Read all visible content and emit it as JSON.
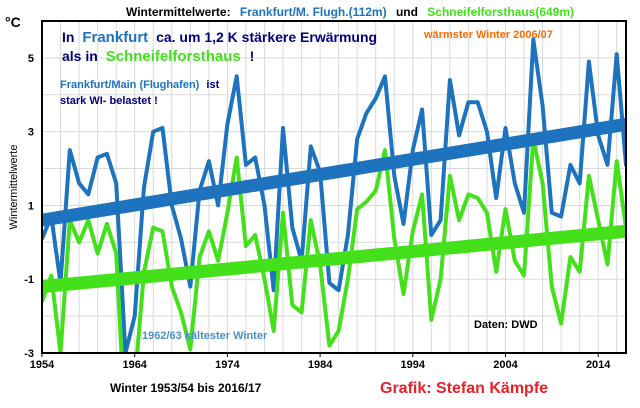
{
  "header": {
    "part1": "Wintermittelwerte:",
    "part2": "Frankfurt/M. Flugh.(112m)",
    "part3": "und",
    "part4": "Schneifelforsthaus(649m)"
  },
  "unit": "°C",
  "ylabel": "Wintermittelwerte",
  "annotations": {
    "headline_1a": "In",
    "headline_1b": "Frankfurt",
    "headline_1c": "ca. um 1,2 K stärkere Erwärmung",
    "headline_2a": "als in",
    "headline_2b": "Schneifelforsthaus",
    "headline_2c": "!",
    "warmest": "wärmster Winter 2006/07",
    "frankfurt_1a": "Frankfurt/Main (Flughafen)",
    "frankfurt_1b": "ist",
    "frankfurt_2": "stark WI- belastet !",
    "coldest": "1962/63 kältester Winter",
    "source": "Daten: DWD",
    "period": "Winter 1953/54 bis 2016/17",
    "credit": "Grafik: Stefan Kämpfe"
  },
  "colors": {
    "frankfurt": "#1e73be",
    "schneifel": "#44e01c",
    "headline": "#000080",
    "warmest": "#ff6a00",
    "credit": "#e8202a"
  },
  "chart_data": {
    "type": "line",
    "xlim": [
      1954,
      2017
    ],
    "ylim": [
      -3,
      6
    ],
    "xticks": [
      1954,
      1964,
      1974,
      1984,
      1994,
      2004,
      2014
    ],
    "yticks": [
      -3,
      -1,
      1,
      3,
      5
    ],
    "grid": true,
    "series": [
      {
        "name": "Frankfurt/M. Flugh.(112m)",
        "x": [
          1954,
          1955,
          1956,
          1957,
          1958,
          1959,
          1960,
          1961,
          1962,
          1963,
          1964,
          1965,
          1966,
          1967,
          1968,
          1969,
          1970,
          1971,
          1972,
          1973,
          1974,
          1975,
          1976,
          1977,
          1978,
          1979,
          1980,
          1981,
          1982,
          1983,
          1984,
          1985,
          1986,
          1987,
          1988,
          1989,
          1990,
          1991,
          1992,
          1993,
          1994,
          1995,
          1996,
          1997,
          1998,
          1999,
          2000,
          2001,
          2002,
          2003,
          2004,
          2005,
          2006,
          2007,
          2008,
          2009,
          2010,
          2011,
          2012,
          2013,
          2014,
          2015,
          2016,
          2017
        ],
        "y": [
          0.1,
          0.7,
          -1.1,
          2.5,
          1.6,
          1.3,
          2.3,
          2.4,
          1.6,
          -3.0,
          -2.0,
          1.5,
          3.0,
          3.1,
          1.0,
          0.1,
          -1.2,
          1.4,
          2.2,
          1.0,
          3.2,
          4.5,
          2.1,
          2.3,
          1.0,
          -1.3,
          3.1,
          0.4,
          -0.5,
          2.6,
          1.9,
          -1.1,
          -1.3,
          0.2,
          2.8,
          3.5,
          3.9,
          4.5,
          1.8,
          0.5,
          2.5,
          3.6,
          0.2,
          0.6,
          4.4,
          2.9,
          3.8,
          3.8,
          3.0,
          1.2,
          3.1,
          1.6,
          0.8,
          5.5,
          3.7,
          0.8,
          0.7,
          2.1,
          1.6,
          4.9,
          2.9,
          2.1,
          5.1,
          2.1
        ]
      },
      {
        "name": "Schneifelforsthaus(649m)",
        "x": [
          1954,
          1955,
          1956,
          1957,
          1958,
          1959,
          1960,
          1961,
          1962,
          1963,
          1964,
          1965,
          1966,
          1967,
          1968,
          1969,
          1970,
          1971,
          1972,
          1973,
          1974,
          1975,
          1976,
          1977,
          1978,
          1979,
          1980,
          1981,
          1982,
          1983,
          1984,
          1985,
          1986,
          1987,
          1988,
          1989,
          1990,
          1991,
          1992,
          1993,
          1994,
          1995,
          1996,
          1997,
          1998,
          1999,
          2000,
          2001,
          2002,
          2003,
          2004,
          2005,
          2006,
          2007,
          2008,
          2009,
          2010,
          2011,
          2012,
          2013,
          2014,
          2015,
          2016,
          2017
        ],
        "y": [
          -1.6,
          -0.9,
          -3.0,
          0.6,
          0.0,
          0.6,
          -0.3,
          0.5,
          -0.3,
          -5.0,
          -3.8,
          -0.8,
          0.4,
          0.3,
          -1.2,
          -1.9,
          -2.9,
          -0.4,
          0.3,
          -0.5,
          0.8,
          2.3,
          -0.1,
          0.2,
          -1.0,
          -2.4,
          0.8,
          -1.7,
          -1.9,
          0.6,
          -0.6,
          -2.8,
          -2.4,
          -1.0,
          0.9,
          1.1,
          1.4,
          2.5,
          0.1,
          -1.4,
          0.3,
          1.3,
          -2.1,
          -1.0,
          1.8,
          0.6,
          1.3,
          1.2,
          0.8,
          -0.8,
          0.9,
          -0.5,
          -0.9,
          2.8,
          1.6,
          -1.2,
          -2.2,
          -0.4,
          -0.8,
          1.8,
          0.6,
          -0.6,
          2.2,
          0.4
        ]
      },
      {
        "name": "Trend Frankfurt",
        "x": [
          1954,
          2017
        ],
        "y": [
          0.6,
          3.2
        ]
      },
      {
        "name": "Trend Schneifelforsthaus",
        "x": [
          1954,
          2017
        ],
        "y": [
          -1.2,
          0.3
        ]
      }
    ]
  }
}
